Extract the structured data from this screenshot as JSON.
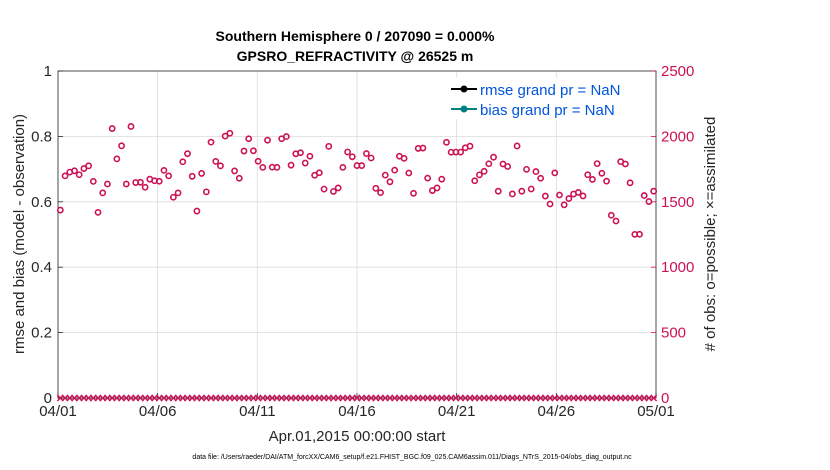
{
  "chart_data": {
    "type": "scatter",
    "title": "Southern Hemisphere 0 / 207090 = 0.000%",
    "subtitle": "GPSRO_REFRACTIVITY @ 26525 m",
    "xlabel": "Apr.01,2015 00:00:00 start",
    "ylabel": "rmse and bias (model - observation)",
    "ylabel_right": "# of obs: o=possible; ×=assimilated",
    "footer": "data file: /Users/raeder/DAI/ATM_forcXX/CAM6_setup/f.e21.FHIST_BGC.f09_025.CAM6assim.011/Diags_NTrS_2015-04/obs_diag_output.nc",
    "xlim": [
      0,
      30
    ],
    "x_ticks": [
      0,
      5,
      10,
      15,
      20,
      25,
      30
    ],
    "x_tick_labels": [
      "04/01",
      "04/06",
      "04/11",
      "04/16",
      "04/21",
      "04/26",
      "05/01"
    ],
    "ylim": [
      0,
      1
    ],
    "y_ticks": [
      "0",
      "0.2",
      "0.4",
      "0.6",
      "0.8",
      "1"
    ],
    "ylim_right": [
      0,
      2500
    ],
    "y_ticks_right": [
      "0",
      "500",
      "1000",
      "1500",
      "2000",
      "2500"
    ],
    "grid": true,
    "legend_placement": "top-right",
    "legend": [
      {
        "label": "rmse grand pr = NaN",
        "color": "#000000"
      },
      {
        "label": "bias grand pr = NaN",
        "color": "#008080"
      }
    ],
    "colors": {
      "obs": "#cc1155",
      "rmse": "#000000",
      "bias": "#008080",
      "legend_text": "#0055dd",
      "grid": "#dcdcdc"
    },
    "possible_obs": [
      1437,
      1698,
      1727,
      1737,
      1707,
      1754,
      1775,
      1656,
      1419,
      1568,
      1636,
      2060,
      1828,
      1928,
      1636,
      2076,
      1647,
      1649,
      1611,
      1673,
      1661,
      1657,
      1740,
      1698,
      1535,
      1568,
      1806,
      1868,
      1695,
      1429,
      1717,
      1576,
      1956,
      1809,
      1775,
      2002,
      2024,
      1736,
      1680,
      1888,
      1982,
      1890,
      1810,
      1763,
      1971,
      1765,
      1763,
      1982,
      1999,
      1780,
      1867,
      1875,
      1796,
      1848,
      1703,
      1722,
      1597,
      1924,
      1579,
      1606,
      1763,
      1881,
      1844,
      1777,
      1777,
      1869,
      1835,
      1603,
      1570,
      1704,
      1653,
      1742,
      1848,
      1832,
      1720,
      1565,
      1908,
      1911,
      1681,
      1586,
      1606,
      1673,
      1955,
      1879,
      1880,
      1880,
      1913,
      1925,
      1661,
      1706,
      1733,
      1791,
      1841,
      1581,
      1789,
      1770,
      1560,
      1927,
      1581,
      1748,
      1598,
      1731,
      1680,
      1544,
      1483,
      1721,
      1552,
      1477,
      1525,
      1559,
      1572,
      1545,
      1707,
      1671,
      1792,
      1718,
      1658,
      1397,
      1353,
      1807,
      1789,
      1645,
      1251,
      1252,
      1548,
      1502,
      1581
    ]
  }
}
